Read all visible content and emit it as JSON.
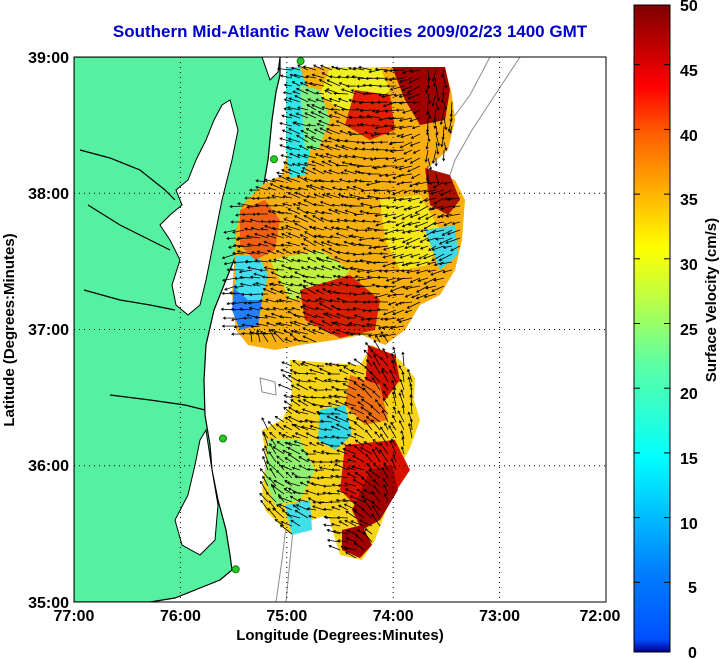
{
  "title": "Southern Mid-Atlantic Raw Velocities 2009/02/23 1400 GMT",
  "map": {
    "xlabel": "Longitude (Degrees:Minutes)",
    "ylabel": "Latitude (Degrees:Minutes)",
    "xticks": [
      "77:00",
      "76:00",
      "75:00",
      "74:00",
      "73:00",
      "72:00"
    ],
    "yticks": [
      "39:00",
      "38:00",
      "37:00",
      "36:00",
      "35:00"
    ],
    "lon_range": [
      -77,
      -72
    ],
    "lat_range": [
      35,
      39
    ],
    "grid": "dotted"
  },
  "colorbar": {
    "label": "Surface Velocity (cm/s)",
    "ticks": [
      "50",
      "45",
      "40",
      "35",
      "30",
      "25",
      "20",
      "15",
      "10",
      "5",
      "0"
    ],
    "range": [
      0,
      50
    ],
    "colormap": "jet"
  },
  "colors": {
    "title": "#0000cc",
    "land": "#55f0a0",
    "coastline": "#000000",
    "bathymetry": "#888888",
    "station": "#22cc22"
  },
  "stations": [
    {
      "lon": -74.87,
      "lat": 38.97
    },
    {
      "lon": -75.12,
      "lat": 38.25
    },
    {
      "lon": -75.6,
      "lat": 36.2
    },
    {
      "lon": -75.48,
      "lat": 35.24
    }
  ]
}
